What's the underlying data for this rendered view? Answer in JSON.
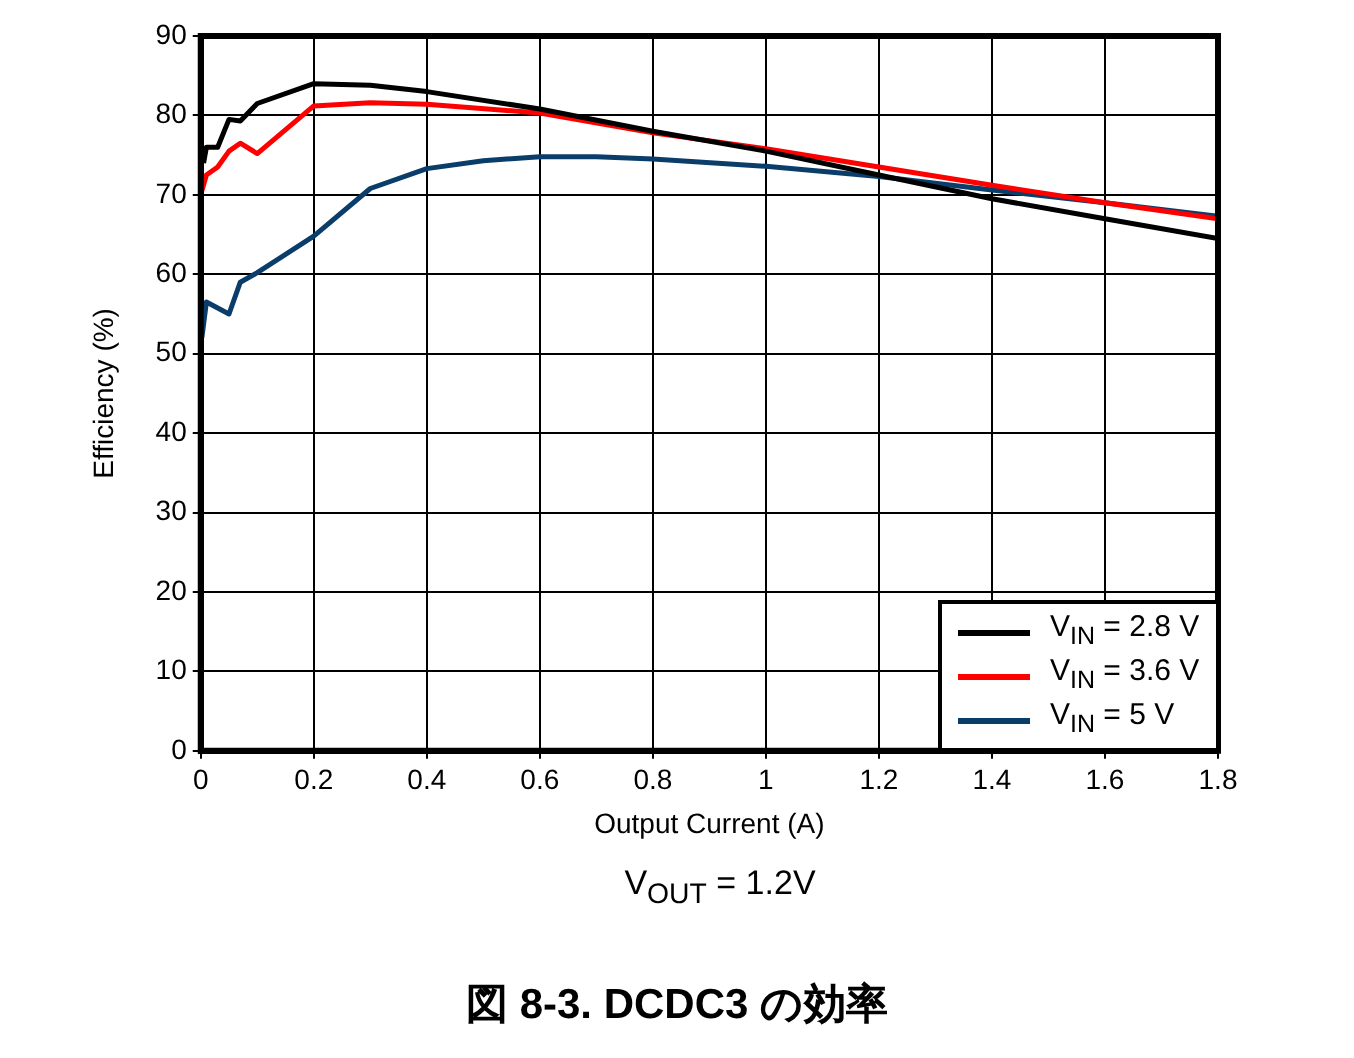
{
  "chart_data": {
    "type": "line",
    "title": "図 8-3. DCDC3 の効率",
    "xlabel": "Output Current (A)",
    "ylabel": "Efficiency (%)",
    "annotations": [
      "V$_{OUT}$ = 1.2V"
    ],
    "xlim": [
      0,
      1.8
    ],
    "xticks": [
      0,
      0.2,
      0.4,
      0.6,
      0.8,
      1,
      1.2,
      1.4,
      1.6,
      1.8
    ],
    "ylim": [
      0,
      90
    ],
    "yticks": [
      0,
      10,
      20,
      30,
      40,
      50,
      60,
      70,
      80,
      90
    ],
    "grid": true,
    "legend": "bottom right",
    "marker": "none",
    "line_style": "solid",
    "series": [
      {
        "name": "V$_{IN}$ = 2.8 V",
        "color": "#000000",
        "x": [
          0.005,
          0.01,
          0.03,
          0.05,
          0.07,
          0.1,
          0.2,
          0.3,
          0.4,
          0.6,
          0.8,
          1,
          1.2,
          1.4,
          1.6,
          1.8
        ],
        "values": [
          74,
          76,
          76,
          79.5,
          79.3,
          81.5,
          84,
          83.8,
          83,
          80.8,
          78,
          75.5,
          72.5,
          69.5,
          67,
          64.5
        ]
      },
      {
        "name": "V$_{IN}$ = 3.6 V",
        "color": "#ff0000",
        "x": [
          0.002,
          0.01,
          0.03,
          0.05,
          0.07,
          0.1,
          0.2,
          0.3,
          0.4,
          0.6,
          0.8,
          1,
          1.2,
          1.4,
          1.6,
          1.8
        ],
        "values": [
          70.5,
          72.5,
          73.5,
          75.5,
          76.5,
          75.2,
          81.2,
          81.6,
          81.4,
          80.3,
          77.8,
          75.8,
          73.5,
          71.2,
          69,
          67
        ]
      },
      {
        "name": "V$_{IN}$ = 5 V",
        "color": "#0b3d6b",
        "x": [
          0.002,
          0.01,
          0.05,
          0.07,
          0.1,
          0.2,
          0.3,
          0.4,
          0.5,
          0.6,
          0.7,
          0.8,
          1,
          1.2,
          1.4,
          1.6,
          1.8
        ],
        "values": [
          52,
          56.5,
          55,
          59,
          60.2,
          64.8,
          70.8,
          73.3,
          74.3,
          74.8,
          74.8,
          74.5,
          73.6,
          72.3,
          70.6,
          69,
          67.3
        ]
      }
    ]
  }
}
